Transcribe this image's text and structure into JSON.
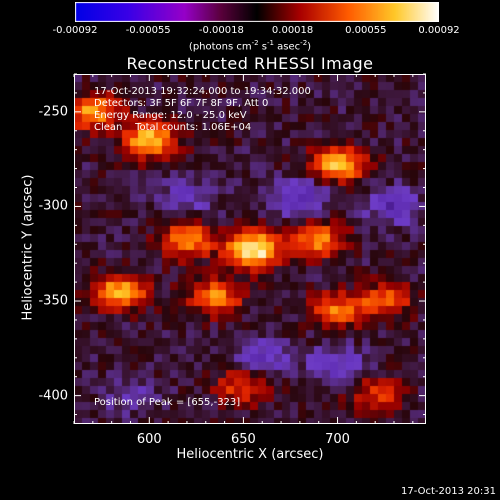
{
  "colorbar": {
    "ticks": [
      "-0.00092",
      "-0.00055",
      "-0.00018",
      "0.00018",
      "0.00055",
      "0.00092"
    ],
    "range": [
      -0.00092,
      0.00092
    ],
    "unit_parts": {
      "a": "(photons cm",
      "b": "-2",
      "c": " s",
      "d": "-1",
      "e": " asec",
      "f": "-2",
      "g": ")"
    }
  },
  "chart_data": {
    "type": "heatmap",
    "title": "Reconstructed RHESSI Image",
    "xlabel": "Heliocentric X (arcsec)",
    "ylabel": "Heliocentric Y (arcsec)",
    "xlim": [
      560,
      747
    ],
    "ylim": [
      -415,
      -230
    ],
    "xticks": [
      600,
      650,
      700
    ],
    "yticks": [
      -250,
      -300,
      -350,
      -400
    ],
    "peak": [
      655,
      -323
    ],
    "colormap": "rainbow-hot (black-purple-red-orange-yellow-white)",
    "bright_regions": [
      {
        "x": 655,
        "y": -323,
        "level": 0.00092
      },
      {
        "x": 600,
        "y": -265,
        "level": 0.0007
      },
      {
        "x": 570,
        "y": -250,
        "level": 0.0006
      },
      {
        "x": 700,
        "y": -278,
        "level": 0.00065
      },
      {
        "x": 620,
        "y": -318,
        "level": 0.00055
      },
      {
        "x": 690,
        "y": -318,
        "level": 0.0005
      },
      {
        "x": 585,
        "y": -345,
        "level": 0.00065
      },
      {
        "x": 635,
        "y": -348,
        "level": 0.0005
      },
      {
        "x": 700,
        "y": -355,
        "level": 0.00045
      },
      {
        "x": 725,
        "y": -350,
        "level": 0.0004
      },
      {
        "x": 650,
        "y": -395,
        "level": 0.00035
      },
      {
        "x": 720,
        "y": -400,
        "level": 0.0003
      }
    ],
    "dark_regions": [
      {
        "x": 680,
        "y": -295,
        "level": -0.00055
      },
      {
        "x": 730,
        "y": -300,
        "level": -0.0005
      },
      {
        "x": 620,
        "y": -295,
        "level": -0.0004
      },
      {
        "x": 660,
        "y": -380,
        "level": -0.0005
      },
      {
        "x": 700,
        "y": -383,
        "level": -0.00045
      },
      {
        "x": 590,
        "y": -400,
        "level": -0.00035
      }
    ]
  },
  "info": {
    "line1": "17-Oct-2013 19:32:24.000 to 19:34:32.000",
    "line2": "Detectors: 3F 5F 6F 7F 8F 9F, Att 0",
    "line3": "Energy Range: 12.0 - 25.0 keV",
    "line4": "Clean    Total counts: 1.06E+04"
  },
  "peak_label": "Position of Peak = [655,-323]",
  "timestamp": "17-Oct-2013 20:31"
}
